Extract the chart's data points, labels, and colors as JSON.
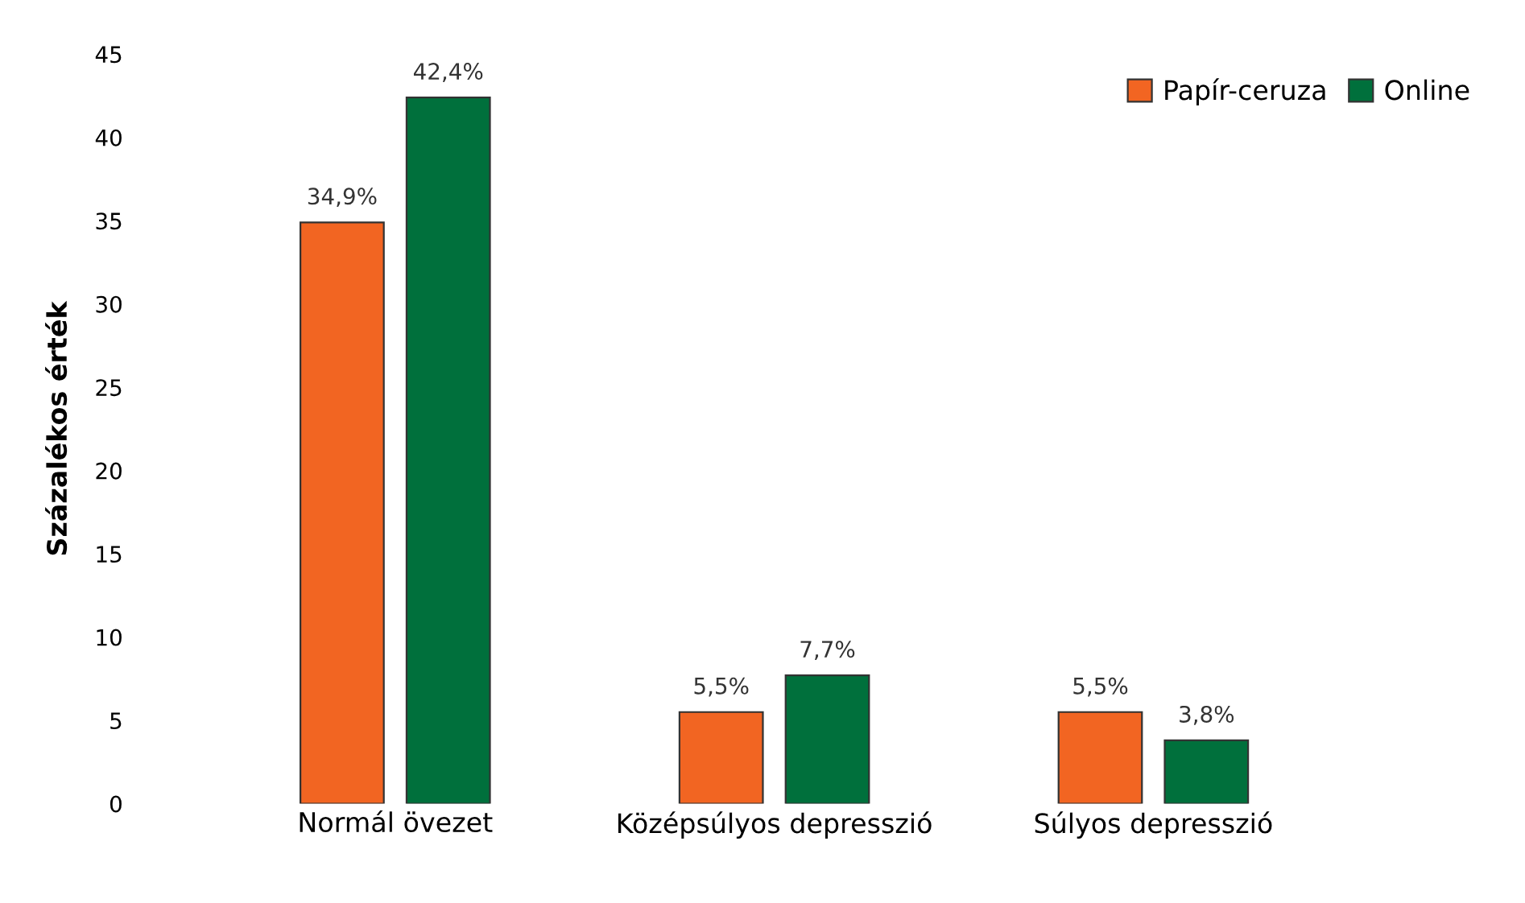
{
  "chart_data": {
    "type": "bar",
    "ylabel": "Százalékos érték",
    "categories": [
      "Normál övezet",
      "Középsúlyos depresszió",
      "Súlyos depresszió"
    ],
    "series": [
      {
        "name": "Papír-ceruza",
        "color": "#f26522",
        "values": [
          34.9,
          5.5,
          5.5
        ],
        "value_labels": [
          "34,9%",
          "5,5%",
          "5,5%"
        ]
      },
      {
        "name": "Online",
        "color": "#00703c",
        "values": [
          42.4,
          7.7,
          3.8
        ],
        "value_labels": [
          "42,4%",
          "7,7%",
          "3,8%"
        ]
      }
    ],
    "ylim": [
      0,
      45
    ],
    "yticks": [
      0,
      5,
      10,
      15,
      20,
      25,
      30,
      35,
      40,
      45
    ],
    "grid": false,
    "legend": "top right"
  }
}
